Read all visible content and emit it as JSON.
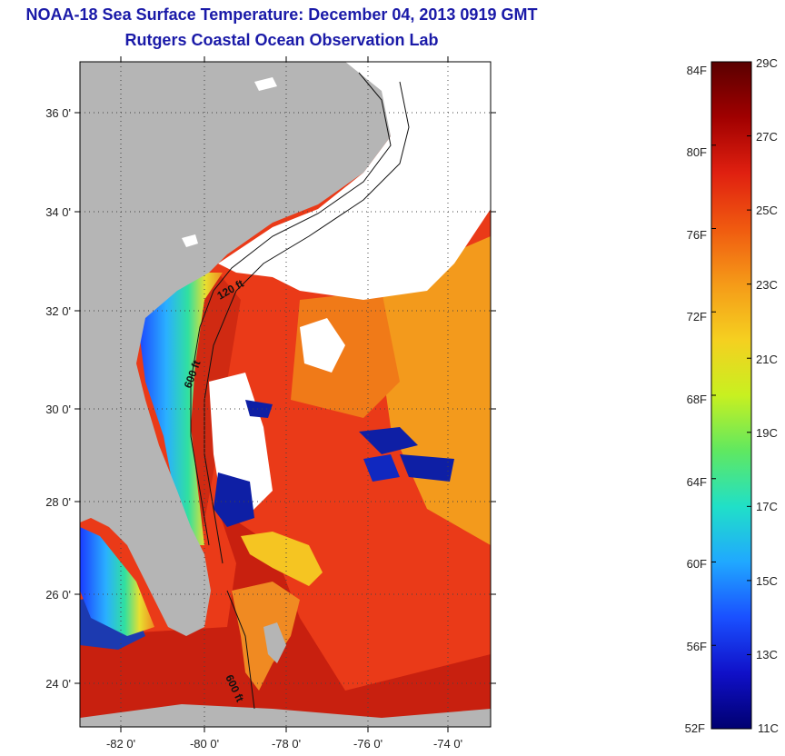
{
  "title": {
    "line1": "NOAA-18 Sea Surface Temperature:  December 04, 2013 0919 GMT",
    "line2": "Rutgers Coastal Ocean Observation Lab"
  },
  "map": {
    "lat_ticks": [
      "36 0'",
      "34 0'",
      "32 0'",
      "30 0'",
      "28 0'",
      "26 0'",
      "24 0'"
    ],
    "lon_ticks": [
      "-82 0'",
      "-80 0'",
      "-78 0'",
      "-76 0'",
      "-74 0'"
    ],
    "contour_labels": [
      "120 ft",
      "600 ft",
      "600 ft"
    ],
    "colors": {
      "land": "#b4b4b4",
      "cloud": "#ffffff",
      "warm": "#e8361a",
      "hot": "#c81b12",
      "mid": "#f2a01e",
      "cool": "#2aa0ff",
      "cold": "#0a1aa0"
    }
  },
  "colorbar": {
    "fahrenheit": [
      "84F",
      "80F",
      "76F",
      "72F",
      "68F",
      "64F",
      "60F",
      "56F",
      "52F"
    ],
    "celsius": [
      "29C",
      "27C",
      "25C",
      "23C",
      "21C",
      "19C",
      "17C",
      "15C",
      "13C",
      "11C"
    ],
    "gradient_top_to_bottom": [
      "#5a0000",
      "#a00000",
      "#e02010",
      "#f05a10",
      "#f59a18",
      "#f5d020",
      "#c8f020",
      "#60e860",
      "#20e0c8",
      "#20a8ff",
      "#1a50ff",
      "#1010c8",
      "#000070"
    ]
  }
}
